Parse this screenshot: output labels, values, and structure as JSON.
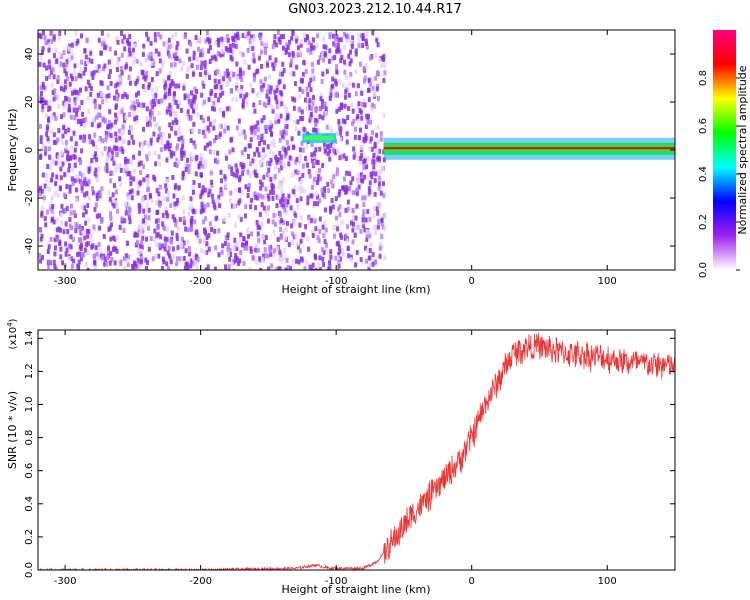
{
  "title": "GN03.2023.212.10.44.R17",
  "chart_data": [
    {
      "type": "heatmap",
      "xlabel": "Height of straight line (km)",
      "ylabel": "Frequency (Hz)",
      "xlim": [
        -320,
        150
      ],
      "ylim": [
        -50,
        50
      ],
      "xticks": [
        -300,
        -200,
        -100,
        0,
        100
      ],
      "yticks": [
        -40,
        -20,
        0,
        20,
        40
      ],
      "colorbar": {
        "label": "Normalized spectral amplitude",
        "range": [
          0.0,
          1.0
        ],
        "ticks": [
          0.0,
          0.2,
          0.4,
          0.6,
          0.8
        ],
        "tick_labels": [
          "0.0",
          "0.2",
          "0.4",
          "0.6",
          "0.8"
        ],
        "colors": [
          "#ffffff",
          "#a020f0",
          "#0000ff",
          "#00ffff",
          "#00ff00",
          "#ffff00",
          "#ff0000",
          "#ff0080"
        ]
      },
      "regions": [
        {
          "x_range": [
            -320,
            -65
          ],
          "y_range": [
            -50,
            50
          ],
          "amplitude": 0.1
        },
        {
          "x_range": [
            -125,
            -100
          ],
          "y_range": [
            3,
            7
          ],
          "amplitude": 0.45
        },
        {
          "x_range": [
            -65,
            150
          ],
          "y_range": [
            -2,
            3
          ],
          "amplitude": 0.9
        }
      ]
    },
    {
      "type": "line",
      "xlabel": "Height of straight line (km)",
      "ylabel": "SNR (10 * v/v)",
      "y_multiplier": "(x10",
      "y_multiplier_exp": "4",
      "y_multiplier_close": ")",
      "xlim": [
        -320,
        150
      ],
      "ylim": [
        0,
        1.45
      ],
      "xticks": [
        -300,
        -200,
        -100,
        0,
        100
      ],
      "yticks": [
        0.0,
        0.2,
        0.4,
        0.6,
        0.8,
        1.0,
        1.2,
        1.4
      ],
      "ytick_labels": [
        "0.0",
        "0.2",
        "0.4",
        "0.6",
        "0.8",
        "1.0",
        "1.2",
        "1.4"
      ],
      "color": "#ee3333",
      "series": [
        {
          "x": [
            -320,
            -200,
            -130,
            -115,
            -105,
            -80,
            -70,
            -60,
            -50,
            -40,
            -30,
            -20,
            -10,
            0,
            10,
            20,
            30,
            40,
            50,
            60,
            70,
            80,
            100,
            120,
            150
          ],
          "y": [
            0.0,
            0.0,
            0.01,
            0.03,
            0.01,
            0.01,
            0.05,
            0.15,
            0.27,
            0.37,
            0.45,
            0.55,
            0.65,
            0.8,
            1.0,
            1.15,
            1.3,
            1.35,
            1.35,
            1.33,
            1.31,
            1.3,
            1.28,
            1.25,
            1.23
          ]
        }
      ]
    }
  ]
}
